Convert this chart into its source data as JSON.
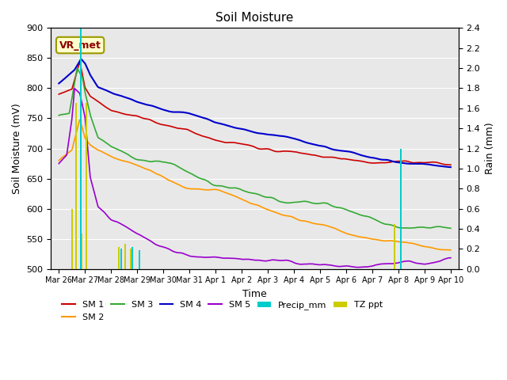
{
  "title": "Soil Moisture",
  "xlabel": "Time",
  "ylabel_left": "Soil Moisture (mV)",
  "ylabel_right": "Rain (mm)",
  "ylim_left": [
    500,
    900
  ],
  "ylim_right": [
    0.0,
    2.4
  ],
  "plot_bg": "#e8e8e8",
  "annotation_text": "VR_met",
  "annotation_color": "#8b0000",
  "annotation_bg": "#ffffcc",
  "sm1_color": "#cc0000",
  "sm2_color": "#ff9900",
  "sm3_color": "#33aa33",
  "sm4_color": "#0000cc",
  "sm5_color": "#9900cc",
  "precip_color": "#00cccc",
  "tz_color": "#cccc00",
  "tick_labels": [
    "Mar 26",
    "Mar 27",
    "Mar 28",
    "Mar 29",
    "Mar 30",
    "Mar 31",
    "Apr 1",
    "Apr 2",
    "Apr 3",
    "Apr 4",
    "Apr 5",
    "Apr 6",
    "Apr 7",
    "Apr 8",
    "Apr 9",
    "Apr 10"
  ],
  "legend_row1": [
    "SM 1",
    "SM 2",
    "SM 3",
    "SM 4",
    "SM 5",
    "Precip_mm"
  ],
  "legend_row2": [
    "TZ ppt"
  ]
}
